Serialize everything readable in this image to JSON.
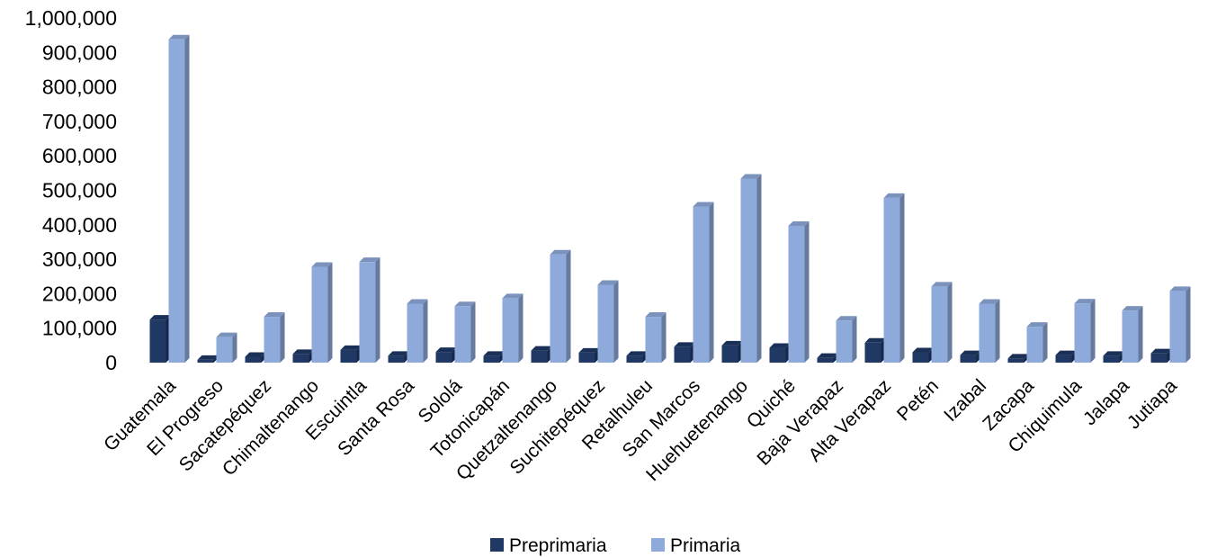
{
  "chart_data": {
    "type": "bar",
    "title": "",
    "xlabel": "",
    "ylabel": "",
    "ylim": [
      0,
      1000000
    ],
    "ytick_step": 100000,
    "yticks": [
      "0",
      "100,000",
      "200,000",
      "300,000",
      "400,000",
      "500,000",
      "600,000",
      "700,000",
      "800,000",
      "900,000",
      "1,000,000"
    ],
    "grid": false,
    "legend_position": "bottom",
    "categories": [
      "Guatemala",
      "El Progreso",
      "Sacatepéquez",
      "Chimaltenango",
      "Escuintla",
      "Santa Rosa",
      "Sololá",
      "Totonicapán",
      "Quetzaltenango",
      "Suchitepéquez",
      "Retalhuleu",
      "San Marcos",
      "Huehuetenango",
      "Quiché",
      "Baja Verapaz",
      "Alta Verapaz",
      "Petén",
      "Izabal",
      "Zacapa",
      "Chiquimula",
      "Jalapa",
      "Jutiapa"
    ],
    "series": [
      {
        "name": "Preprimaria",
        "color": "#1f3864",
        "values": [
          125000,
          8000,
          17000,
          25000,
          37000,
          20000,
          31000,
          20000,
          35000,
          29000,
          20000,
          46000,
          50000,
          43000,
          14000,
          58000,
          30000,
          22000,
          12000,
          22000,
          20000,
          27000
        ]
      },
      {
        "name": "Primaria",
        "color": "#8eaadb",
        "values": [
          938000,
          74000,
          133000,
          278000,
          292000,
          171000,
          164000,
          187000,
          314000,
          226000,
          133000,
          453000,
          534000,
          397000,
          122000,
          478000,
          221000,
          171000,
          104000,
          172000,
          151000,
          208000
        ]
      }
    ]
  }
}
